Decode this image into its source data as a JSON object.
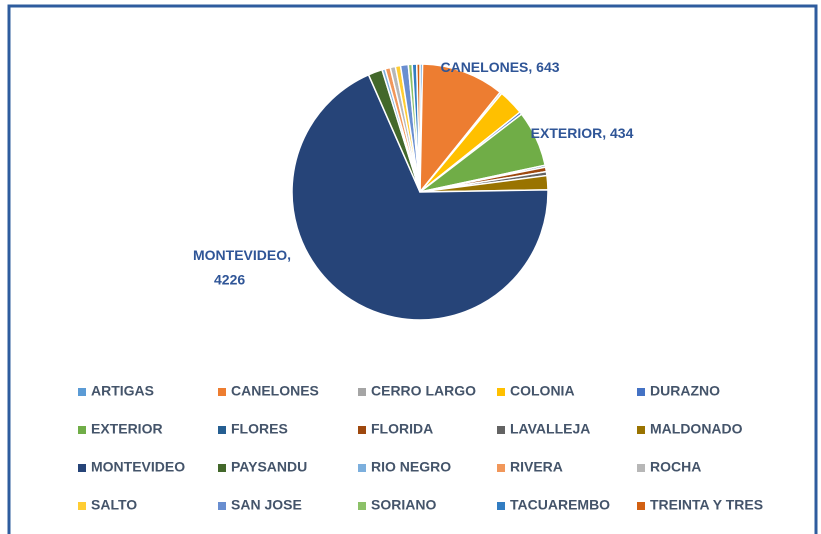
{
  "chart_data": {
    "type": "pie",
    "categories": [
      "ARTIGAS",
      "CANELONES",
      "CERRO LARGO",
      "COLONIA",
      "DURAZNO",
      "EXTERIOR",
      "FLORES",
      "FLORIDA",
      "LAVALLEJA",
      "MALDONADO",
      "MONTEVIDEO",
      "PAYSANDU",
      "RIO NEGRO",
      "RIVERA",
      "ROCHA",
      "SALTO",
      "SAN JOSE",
      "SORIANO",
      "TACUAREMBO",
      "TREINTA Y TRES"
    ],
    "values": [
      20,
      643,
      15,
      200,
      20,
      434,
      15,
      35,
      30,
      110,
      4226,
      110,
      25,
      40,
      40,
      40,
      60,
      30,
      35,
      25
    ],
    "colors": [
      "#5b9bd5",
      "#ed7d31",
      "#a5a5a5",
      "#ffc000",
      "#4472c4",
      "#70ad47",
      "#255e91",
      "#9e480e",
      "#636363",
      "#997300",
      "#264478",
      "#43682b",
      "#7cafdd",
      "#f1975a",
      "#b7b7b7",
      "#ffcd33",
      "#698ed0",
      "#8cc168",
      "#327dc2",
      "#d26012"
    ],
    "labeled": [
      1,
      5,
      10
    ],
    "legend": "bottom"
  }
}
